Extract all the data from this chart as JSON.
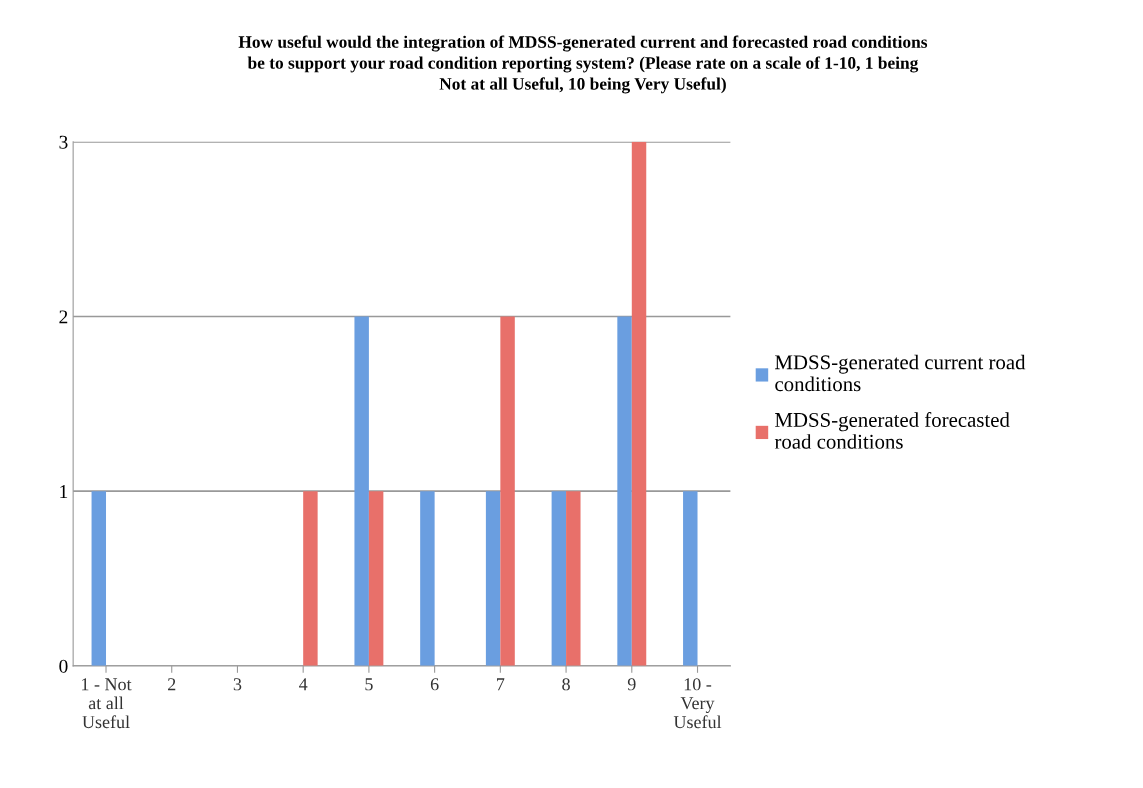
{
  "chart_data": {
    "type": "bar",
    "title": "How useful would the integration of MDSS-generated current and forecasted road conditions\nbe to support your road condition reporting system? (Please rate on a scale of 1-10, 1 being\nNot at all Useful, 10 being Very Useful)",
    "categories": [
      "1 - Not\nat all\nUseful",
      "2",
      "3",
      "4",
      "5",
      "6",
      "7",
      "8",
      "9",
      "10 -\nVery\nUseful"
    ],
    "series": [
      {
        "name": "MDSS-generated current road\nconditions",
        "color": "#6a9ee0",
        "values": [
          1,
          0,
          0,
          0,
          2,
          1,
          1,
          1,
          2,
          1
        ]
      },
      {
        "name": "MDSS-generated forecasted\nroad conditions",
        "color": "#e8706a",
        "values": [
          0,
          0,
          0,
          1,
          1,
          0,
          2,
          1,
          3,
          0
        ]
      }
    ],
    "ylim": [
      0,
      3
    ],
    "yticks": [
      0,
      1,
      2,
      3
    ],
    "grid": "y",
    "legend": "right"
  }
}
